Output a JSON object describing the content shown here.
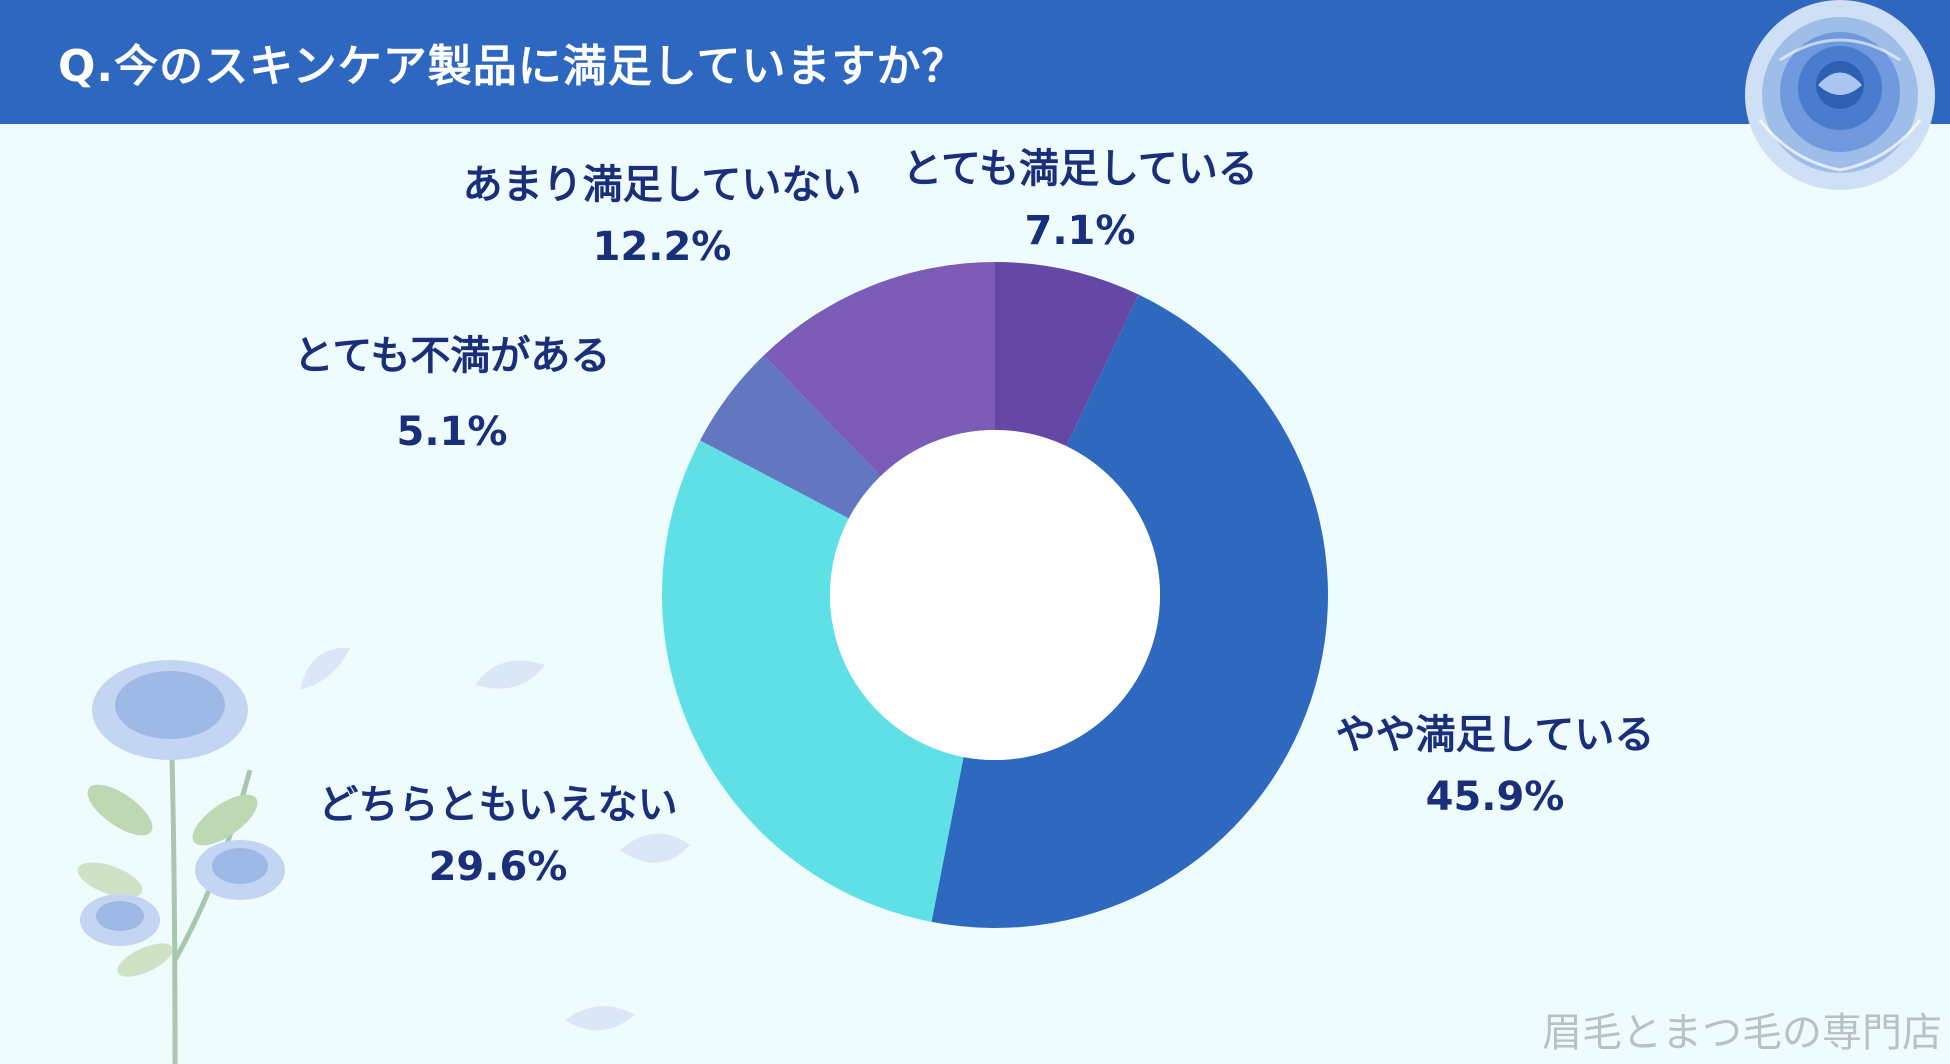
{
  "header": {
    "title": "Q.今のスキンケア製品に満足していますか？"
  },
  "watermark": "眉毛とまつ毛の専門店",
  "colors": {
    "header_bg": "#2e67bf",
    "background": "#effcfe",
    "label_text": "#1a2e7a"
  },
  "icons": {
    "top_right": "blue-rose-icon",
    "bottom_left": "blue-rose-branch-icon"
  },
  "chart_data": {
    "type": "pie",
    "donut": true,
    "start": "12 o'clock",
    "direction": "clockwise",
    "slices": [
      {
        "label": "とても満足している",
        "value": 7.1,
        "value_text": "7.1%",
        "color": "#6547a6"
      },
      {
        "label": "やや満足している",
        "value": 45.9,
        "value_text": "45.9%",
        "color": "#2e69bf"
      },
      {
        "label": "どちらともいえない",
        "value": 29.6,
        "value_text": "29.6%",
        "color": "#5ee0e6"
      },
      {
        "label": "とても不満がある",
        "value": 5.1,
        "value_text": "5.1%",
        "color": "#6277c0"
      },
      {
        "label": "あまり満足していない",
        "value": 12.2,
        "value_text": "12.2%",
        "color": "#7d5cb8"
      }
    ]
  }
}
